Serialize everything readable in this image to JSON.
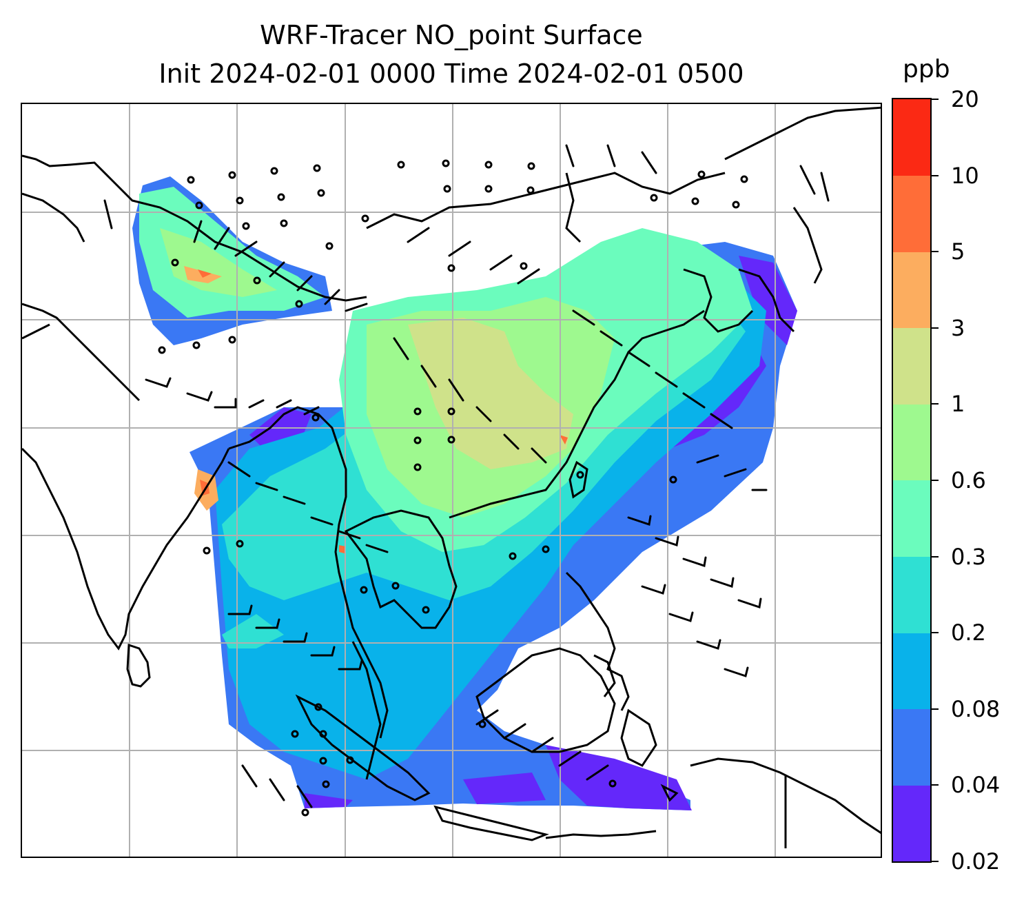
{
  "title": {
    "line1": "WRF-Tracer NO_point Surface",
    "line2": "Init 2024-02-01 0000 Time 2024-02-01 0500"
  },
  "colorbar": {
    "unit": "ppb",
    "levels": [
      "0.02",
      "0.04",
      "0.08",
      "0.2",
      "0.3",
      "0.6",
      "1",
      "3",
      "5",
      "10",
      "20"
    ],
    "colors": [
      "#6428fa",
      "#3a78f4",
      "#09b2ea",
      "#2fe0d3",
      "#6bfcbd",
      "#9ef98f",
      "#cfe28a",
      "#fcad5f",
      "#ff6d38",
      "#fb2914"
    ]
  },
  "map": {
    "field": "NO_point",
    "level": "Surface",
    "gridlines": true,
    "coastline_color": "#000000",
    "gridline_color": "#b0b0b0",
    "wind_barbs": true
  }
}
